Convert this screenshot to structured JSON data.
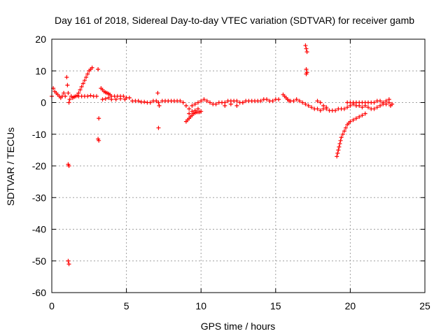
{
  "chart_data": {
    "type": "scatter",
    "title": "Day 161 of 2018, Sidereal Day-to-day VTEC variation (SDTVAR) for receiver gamb",
    "xlabel": "GPS time / hours",
    "ylabel": "SDTVAR / TECUs",
    "xlim": [
      0,
      25
    ],
    "ylim": [
      -60,
      20
    ],
    "xticks": [
      0,
      5,
      10,
      15,
      20,
      25
    ],
    "yticks": [
      20,
      10,
      0,
      -10,
      -20,
      -30,
      -40,
      -50,
      -60
    ],
    "grid": true,
    "marker": "+",
    "color": "#ff0000",
    "series": [
      {
        "name": "SDTVAR",
        "points": [
          [
            0.0,
            2.0
          ],
          [
            0.1,
            4.5
          ],
          [
            0.2,
            3.5
          ],
          [
            0.3,
            3.0
          ],
          [
            0.4,
            2.5
          ],
          [
            0.5,
            2.0
          ],
          [
            0.6,
            1.5
          ],
          [
            0.7,
            2.0
          ],
          [
            0.8,
            3.0
          ],
          [
            0.9,
            2.0
          ],
          [
            1.0,
            8.0
          ],
          [
            1.05,
            5.5
          ],
          [
            1.1,
            3.0
          ],
          [
            1.15,
            0.0
          ],
          [
            1.2,
            1.0
          ],
          [
            1.3,
            2.0
          ],
          [
            1.4,
            1.5
          ],
          [
            1.5,
            1.8
          ],
          [
            1.6,
            2.0
          ],
          [
            1.7,
            2.2
          ],
          [
            1.1,
            -19.5
          ],
          [
            1.15,
            -20.0
          ],
          [
            1.1,
            -50.0
          ],
          [
            1.15,
            -51.0
          ],
          [
            1.8,
            2.0
          ],
          [
            2.0,
            2.0
          ],
          [
            2.2,
            2.0
          ],
          [
            2.4,
            2.0
          ],
          [
            2.6,
            2.2
          ],
          [
            2.8,
            2.0
          ],
          [
            3.0,
            2.0
          ],
          [
            1.8,
            3.0
          ],
          [
            1.9,
            4.0
          ],
          [
            2.0,
            5.0
          ],
          [
            2.1,
            6.0
          ],
          [
            2.2,
            7.0
          ],
          [
            2.3,
            8.0
          ],
          [
            2.4,
            9.0
          ],
          [
            2.5,
            10.0
          ],
          [
            2.6,
            10.5
          ],
          [
            2.7,
            11.0
          ],
          [
            3.1,
            10.5
          ],
          [
            3.15,
            -5.0
          ],
          [
            3.1,
            -11.5
          ],
          [
            3.15,
            -12.0
          ],
          [
            3.3,
            4.5
          ],
          [
            3.4,
            4.0
          ],
          [
            3.5,
            3.5
          ],
          [
            3.6,
            3.2
          ],
          [
            3.7,
            3.0
          ],
          [
            3.8,
            2.8
          ],
          [
            3.9,
            2.5
          ],
          [
            4.0,
            2.0
          ],
          [
            4.2,
            2.0
          ],
          [
            4.4,
            2.0
          ],
          [
            4.6,
            2.0
          ],
          [
            4.8,
            2.0
          ],
          [
            5.0,
            1.5
          ],
          [
            3.4,
            1.0
          ],
          [
            3.6,
            1.2
          ],
          [
            3.8,
            1.5
          ],
          [
            4.0,
            1.0
          ],
          [
            4.3,
            1.0
          ],
          [
            4.6,
            1.2
          ],
          [
            4.9,
            1.0
          ],
          [
            5.2,
            1.5
          ],
          [
            5.4,
            0.5
          ],
          [
            5.6,
            0.5
          ],
          [
            5.8,
            0.5
          ],
          [
            6.0,
            0.2
          ],
          [
            6.2,
            0.2
          ],
          [
            6.4,
            0.0
          ],
          [
            6.6,
            0.0
          ],
          [
            6.8,
            0.5
          ],
          [
            7.0,
            0.5
          ],
          [
            7.1,
            3.0
          ],
          [
            7.15,
            0.0
          ],
          [
            7.2,
            -1.0
          ],
          [
            7.15,
            -8.0
          ],
          [
            7.4,
            0.5
          ],
          [
            7.6,
            0.5
          ],
          [
            7.8,
            0.5
          ],
          [
            8.0,
            0.5
          ],
          [
            8.2,
            0.5
          ],
          [
            8.4,
            0.5
          ],
          [
            8.6,
            0.5
          ],
          [
            8.8,
            0.0
          ],
          [
            9.0,
            -1.0
          ],
          [
            9.2,
            -2.0
          ],
          [
            9.4,
            -1.0
          ],
          [
            9.6,
            -0.5
          ],
          [
            9.8,
            0.0
          ],
          [
            10.0,
            0.5
          ],
          [
            9.0,
            -6.0
          ],
          [
            9.1,
            -5.5
          ],
          [
            9.2,
            -5.0
          ],
          [
            9.3,
            -4.5
          ],
          [
            9.4,
            -4.0
          ],
          [
            9.5,
            -3.5
          ],
          [
            9.6,
            -3.2
          ],
          [
            9.7,
            -3.0
          ],
          [
            9.8,
            -3.0
          ],
          [
            9.9,
            -3.0
          ],
          [
            10.0,
            -2.8
          ],
          [
            9.2,
            -3.5
          ],
          [
            9.4,
            -2.8
          ],
          [
            9.6,
            -2.5
          ],
          [
            9.8,
            -2.0
          ],
          [
            10.2,
            1.0
          ],
          [
            10.4,
            0.5
          ],
          [
            10.6,
            0.0
          ],
          [
            10.8,
            -0.5
          ],
          [
            11.0,
            -0.5
          ],
          [
            11.2,
            0.0
          ],
          [
            11.4,
            0.0
          ],
          [
            11.6,
            0.0
          ],
          [
            11.8,
            0.5
          ],
          [
            12.0,
            0.5
          ],
          [
            12.2,
            0.5
          ],
          [
            12.4,
            0.5
          ],
          [
            12.6,
            0.0
          ],
          [
            12.8,
            0.0
          ],
          [
            11.6,
            -1.0
          ],
          [
            12.0,
            -0.5
          ],
          [
            12.4,
            -1.0
          ],
          [
            12.8,
            0.0
          ],
          [
            13.0,
            0.5
          ],
          [
            13.2,
            0.5
          ],
          [
            13.4,
            0.5
          ],
          [
            13.6,
            0.5
          ],
          [
            13.8,
            0.5
          ],
          [
            14.0,
            0.5
          ],
          [
            14.2,
            1.0
          ],
          [
            14.4,
            1.0
          ],
          [
            14.6,
            0.5
          ],
          [
            14.8,
            0.5
          ],
          [
            15.0,
            1.0
          ],
          [
            15.2,
            1.0
          ],
          [
            15.5,
            2.5
          ],
          [
            15.6,
            2.0
          ],
          [
            15.7,
            1.5
          ],
          [
            15.8,
            1.0
          ],
          [
            15.9,
            0.5
          ],
          [
            16.0,
            0.5
          ],
          [
            16.2,
            0.5
          ],
          [
            16.4,
            1.0
          ],
          [
            16.6,
            0.5
          ],
          [
            16.8,
            0.0
          ],
          [
            17.0,
            -0.5
          ],
          [
            17.0,
            18.0
          ],
          [
            17.05,
            17.0
          ],
          [
            17.1,
            16.0
          ],
          [
            17.05,
            10.5
          ],
          [
            17.1,
            9.5
          ],
          [
            17.05,
            9.0
          ],
          [
            17.2,
            -1.0
          ],
          [
            17.4,
            -1.5
          ],
          [
            17.6,
            -2.0
          ],
          [
            17.8,
            -2.0
          ],
          [
            18.0,
            -2.5
          ],
          [
            18.2,
            -2.0
          ],
          [
            18.4,
            -2.0
          ],
          [
            18.6,
            -2.5
          ],
          [
            18.8,
            -2.5
          ],
          [
            19.0,
            -2.5
          ],
          [
            19.2,
            -2.0
          ],
          [
            19.4,
            -2.0
          ],
          [
            17.8,
            0.5
          ],
          [
            18.0,
            0.0
          ],
          [
            18.2,
            -1.0
          ],
          [
            18.4,
            -1.5
          ],
          [
            19.1,
            -17.0
          ],
          [
            19.15,
            -16.0
          ],
          [
            19.2,
            -15.0
          ],
          [
            19.25,
            -14.0
          ],
          [
            19.3,
            -13.0
          ],
          [
            19.35,
            -12.0
          ],
          [
            19.4,
            -11.0
          ],
          [
            19.5,
            -10.0
          ],
          [
            19.6,
            -9.0
          ],
          [
            19.7,
            -8.0
          ],
          [
            19.8,
            -7.0
          ],
          [
            19.9,
            -6.5
          ],
          [
            20.0,
            -6.0
          ],
          [
            20.2,
            -5.5
          ],
          [
            20.4,
            -5.0
          ],
          [
            20.6,
            -4.5
          ],
          [
            20.8,
            -4.0
          ],
          [
            21.0,
            -3.5
          ],
          [
            19.6,
            -2.0
          ],
          [
            19.8,
            -1.5
          ],
          [
            20.0,
            -1.0
          ],
          [
            20.2,
            -0.5
          ],
          [
            20.4,
            -1.0
          ],
          [
            20.6,
            -1.0
          ],
          [
            20.8,
            -1.5
          ],
          [
            21.0,
            -1.0
          ],
          [
            19.8,
            0.0
          ],
          [
            20.0,
            0.0
          ],
          [
            20.2,
            0.0
          ],
          [
            20.4,
            0.0
          ],
          [
            20.6,
            0.0
          ],
          [
            20.8,
            0.0
          ],
          [
            21.0,
            0.0
          ],
          [
            21.2,
            0.0
          ],
          [
            21.4,
            0.0
          ],
          [
            21.2,
            -1.5
          ],
          [
            21.4,
            -2.0
          ],
          [
            21.6,
            -2.0
          ],
          [
            21.8,
            -1.5
          ],
          [
            22.0,
            -1.0
          ],
          [
            22.2,
            -0.5
          ],
          [
            22.4,
            -0.5
          ],
          [
            22.6,
            0.0
          ],
          [
            22.8,
            -0.5
          ],
          [
            21.6,
            0.0
          ],
          [
            21.8,
            0.5
          ],
          [
            22.0,
            0.5
          ],
          [
            22.2,
            0.0
          ],
          [
            22.4,
            0.5
          ],
          [
            22.6,
            1.0
          ],
          [
            22.7,
            -1.0
          ]
        ]
      }
    ]
  }
}
